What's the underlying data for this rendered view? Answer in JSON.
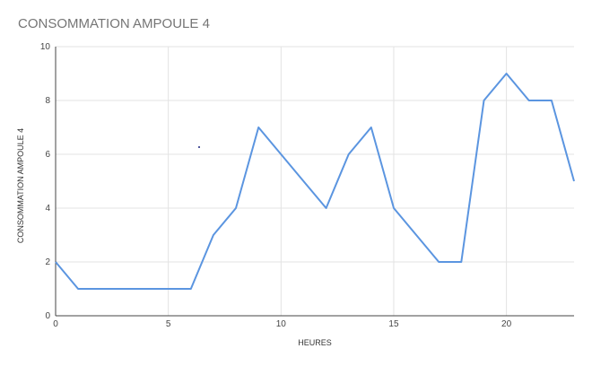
{
  "chart_data": {
    "type": "line",
    "title": "CONSOMMATION AMPOULE 4",
    "xlabel": "HEURES",
    "ylabel": "CONSOMMATION AMPOULE 4",
    "xlim": [
      0,
      23
    ],
    "ylim": [
      0,
      10
    ],
    "x_ticks": [
      0,
      5,
      10,
      15,
      20
    ],
    "y_ticks": [
      0,
      2,
      4,
      6,
      8,
      10
    ],
    "grid": true,
    "legend": "none",
    "series": [
      {
        "color": "#5b95e0",
        "x": [
          0,
          1,
          2,
          3,
          4,
          5,
          6,
          7,
          8,
          9,
          10,
          11,
          12,
          13,
          14,
          15,
          16,
          17,
          18,
          19,
          20,
          21,
          22,
          23
        ],
        "y": [
          2,
          1,
          1,
          1,
          1,
          1,
          1,
          3,
          4,
          7,
          6,
          5,
          4,
          6,
          7,
          4,
          3,
          2,
          2,
          8,
          9,
          8,
          8,
          5
        ]
      }
    ]
  }
}
